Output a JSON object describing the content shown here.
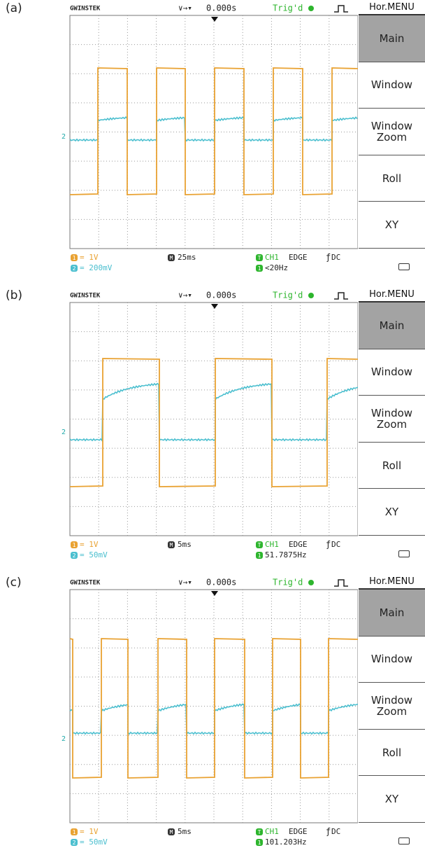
{
  "panels": [
    {
      "label": "(a)",
      "brand": "GWINSTEK",
      "trigger_position": "0.000s",
      "trigger_status": "Trig'd",
      "menu_title": "Hor.MENU",
      "menu_items": [
        "Main",
        "Window",
        "Window Zoom",
        "Roll",
        "XY"
      ],
      "ch1_badge": "1",
      "ch1_scale": "= 1V",
      "ch2_badge": "2",
      "ch2_scale": "= 200mV",
      "ch2_marker": "2",
      "time_badge": "M",
      "timebase": "25ms",
      "trigger_badge": "T",
      "trigger_source": "CH1",
      "trigger_type": "EDGE",
      "trigger_coupling": "DC",
      "frequency": "<20Hz"
    },
    {
      "label": "(b)",
      "brand": "GWINSTEK",
      "trigger_position": "0.000s",
      "trigger_status": "Trig'd",
      "menu_title": "Hor.MENU",
      "menu_items": [
        "Main",
        "Window",
        "Window Zoom",
        "Roll",
        "XY"
      ],
      "ch1_badge": "1",
      "ch1_scale": "= 1V",
      "ch2_badge": "2",
      "ch2_scale": "= 50mV",
      "ch2_marker": "2",
      "time_badge": "M",
      "timebase": "5ms",
      "trigger_badge": "T",
      "trigger_source": "CH1",
      "trigger_type": "EDGE",
      "trigger_coupling": "DC",
      "frequency": "51.7875Hz"
    },
    {
      "label": "(c)",
      "brand": "GWINSTEK",
      "trigger_position": "0.000s",
      "trigger_status": "Trig'd",
      "menu_title": "Hor.MENU",
      "menu_items": [
        "Main",
        "Window",
        "Window Zoom",
        "Roll",
        "XY"
      ],
      "ch1_badge": "1",
      "ch1_scale": "= 1V",
      "ch2_badge": "2",
      "ch2_scale": "= 50mV",
      "ch2_marker": "2",
      "time_badge": "M",
      "timebase": "5ms",
      "trigger_badge": "T",
      "trigger_source": "CH1",
      "trigger_type": "EDGE",
      "trigger_coupling": "DC",
      "frequency": "101.203Hz"
    }
  ]
}
